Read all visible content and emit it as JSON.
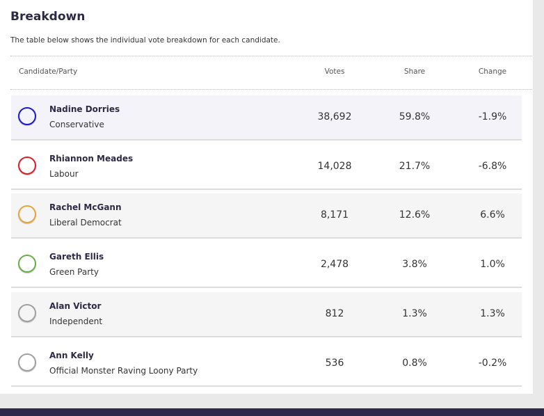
{
  "header": {
    "title": "Breakdown",
    "description": "The table below shows the individual vote breakdown for each candidate."
  },
  "table": {
    "headers": [
      "Candidate/Party",
      "Votes",
      "Share",
      "Change"
    ],
    "rows": [
      {
        "name": "Nadine Dorries",
        "party": "Conservative",
        "votes": "38,692",
        "share": "59.8%",
        "change": "-1.9%",
        "color": "#1a1acc",
        "background": "#f5f3fa"
      },
      {
        "name": "Rhiannon Meades",
        "party": "Labour",
        "votes": "14,028",
        "share": "21.7%",
        "change": "-6.8%",
        "color": "#d61f26",
        "background": "#ffffff"
      },
      {
        "name": "Rachel McGann",
        "party": "Liberal Democrat",
        "votes": "8,171",
        "share": "12.6%",
        "change": "6.6%",
        "color": "#e8a23a",
        "background": "#f5f5f5"
      },
      {
        "name": "Gareth Ellis",
        "party": "Green Party",
        "votes": "2,478",
        "share": "3.8%",
        "change": "1.0%",
        "color": "#6aae46",
        "background": "#ffffff"
      },
      {
        "name": "Alan Victor",
        "party": "Independent",
        "votes": "812",
        "share": "1.3%",
        "change": "1.3%",
        "color": "#a0a0a0",
        "background": "#f5f5f5"
      },
      {
        "name": "Ann Kelly",
        "party": "Official Monster Raving Loony Party",
        "votes": "536",
        "share": "0.8%",
        "change": "-0.2%",
        "color": "#a0a0a0",
        "background": "#ffffff"
      }
    ]
  }
}
